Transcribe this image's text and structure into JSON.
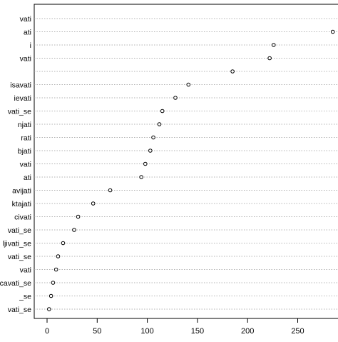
{
  "chart_data": {
    "type": "scatter",
    "style": "dotchart",
    "xlim": [
      -5,
      290
    ],
    "xticks": [
      0,
      50,
      100,
      150,
      200,
      250
    ],
    "grid": "dotted-horizontal",
    "categories": [
      "vati",
      "ati",
      "i",
      "vati",
      "",
      "isavati",
      "ievati",
      "vati_se",
      "njati",
      "rati",
      "bjati",
      "vati",
      "ati",
      "avijati",
      "ktajati",
      "civati",
      "vati_se",
      "ljivati_se",
      "vati_se",
      "vati",
      "ucavati_se",
      "_se",
      "vati_se"
    ],
    "values": [
      null,
      285,
      226,
      222,
      185,
      141,
      128,
      115,
      112,
      106,
      103,
      98,
      94,
      63,
      46,
      31,
      27,
      16,
      11,
      9,
      6,
      4,
      2
    ]
  }
}
